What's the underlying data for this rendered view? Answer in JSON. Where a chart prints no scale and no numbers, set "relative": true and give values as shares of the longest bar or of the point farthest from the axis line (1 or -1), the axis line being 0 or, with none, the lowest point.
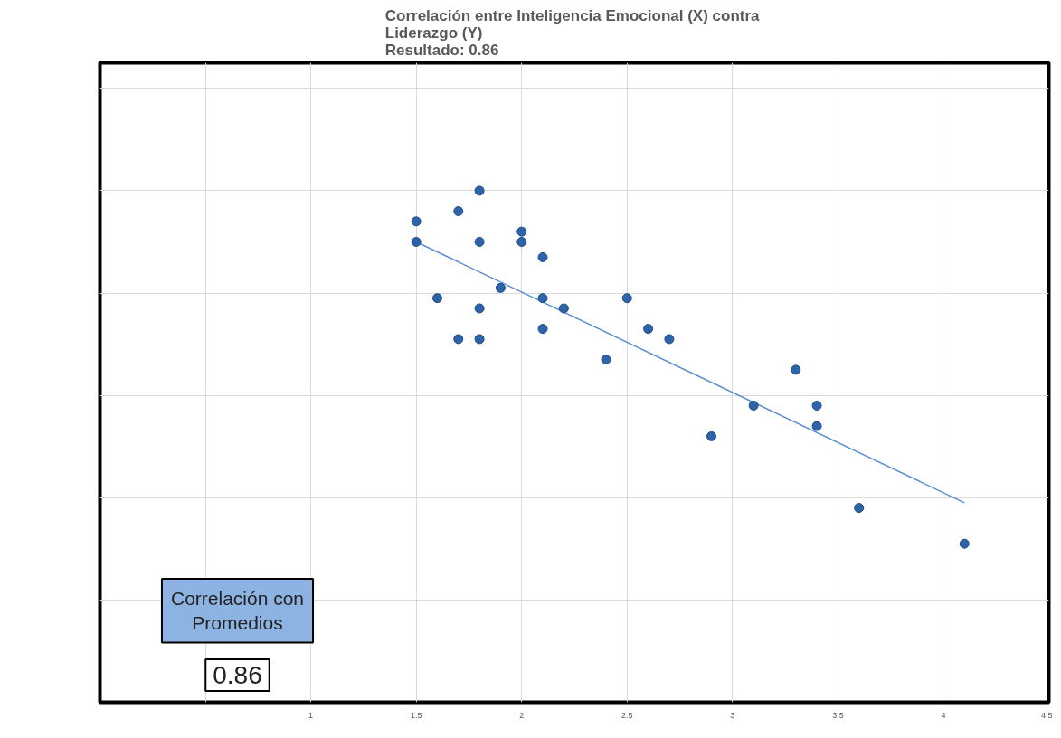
{
  "chart_data": {
    "type": "scatter",
    "title": "Correlación entre Inteligencia Emocional (X)  contra\nLiderazgo (Y)\nResultado: 0.86",
    "relative": true,
    "x": [
      1.5,
      1.5,
      1.6,
      1.7,
      1.7,
      1.8,
      1.8,
      1.8,
      1.8,
      1.9,
      2.0,
      2.0,
      2.1,
      2.1,
      2.1,
      2.2,
      2.4,
      2.5,
      2.6,
      2.7,
      2.9,
      3.1,
      3.3,
      3.4,
      3.4,
      3.6,
      4.1
    ],
    "series": [
      {
        "type": "scatter",
        "marker": "circle",
        "color": "#2e63a8",
        "values": [
          0.94,
          0.9,
          0.79,
          0.96,
          0.71,
          1,
          0.9,
          0.77,
          0.71,
          0.81,
          0.92,
          0.9,
          0.87,
          0.79,
          0.73,
          0.77,
          0.67,
          0.79,
          0.73,
          0.71,
          0.52,
          0.58,
          0.65,
          0.58,
          0.54,
          0.38,
          0.31
        ]
      },
      {
        "type": "line",
        "color": "#5b8fd0",
        "x": [
          1.5,
          4.1
        ],
        "values": [
          0.9,
          0.39
        ]
      }
    ],
    "xlim": [
      0,
      4.5
    ],
    "xticks": [
      {
        "value": 0.5,
        "label": null
      },
      1,
      1.5,
      2,
      2.5,
      3,
      3.5,
      4,
      4.5
    ],
    "grid": true,
    "tick_labels": "x",
    "annotations": [
      "Correlación con\nPromedios",
      "0.86"
    ]
  }
}
